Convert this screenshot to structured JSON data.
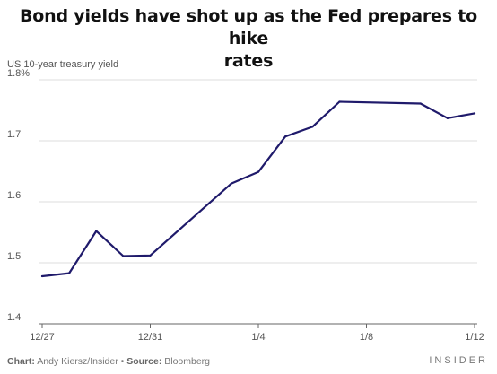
{
  "chart_data": {
    "type": "line",
    "title_lines": [
      "Bond yields have shot up as the Fed prepares to hike",
      "rates"
    ],
    "ylabel": "US 10-year treasury yield",
    "ylim": [
      1.4,
      1.8
    ],
    "yticks": [
      {
        "value": 1.8,
        "label": "1.8%"
      },
      {
        "value": 1.7,
        "label": "1.7"
      },
      {
        "value": 1.6,
        "label": "1.6"
      },
      {
        "value": 1.5,
        "label": "1.5"
      },
      {
        "value": 1.4,
        "label": "1.4"
      }
    ],
    "xticks": [
      {
        "x": 0,
        "label": "12/27"
      },
      {
        "x": 4,
        "label": "12/31"
      },
      {
        "x": 8,
        "label": "1/4"
      },
      {
        "x": 12,
        "label": "1/8"
      },
      {
        "x": 16,
        "label": "1/12"
      }
    ],
    "xlim": [
      0,
      16
    ],
    "grid": true,
    "series": [
      {
        "color": "#1f1a6b",
        "points": [
          {
            "x": 0,
            "y": 1.478
          },
          {
            "x": 1,
            "y": 1.483
          },
          {
            "x": 2,
            "y": 1.552
          },
          {
            "x": 3,
            "y": 1.511
          },
          {
            "x": 4,
            "y": 1.512
          },
          {
            "x": 7,
            "y": 1.63
          },
          {
            "x": 8,
            "y": 1.649
          },
          {
            "x": 9,
            "y": 1.707
          },
          {
            "x": 10,
            "y": 1.723
          },
          {
            "x": 11,
            "y": 1.764
          },
          {
            "x": 14,
            "y": 1.761
          },
          {
            "x": 15,
            "y": 1.737
          },
          {
            "x": 16,
            "y": 1.745
          }
        ]
      }
    ]
  },
  "footer": {
    "credit_label": "Chart:",
    "credit_value": " Andy Kiersz/Insider • ",
    "source_label": "Source:",
    "source_value": " Bloomberg",
    "brand": "INSIDER"
  }
}
